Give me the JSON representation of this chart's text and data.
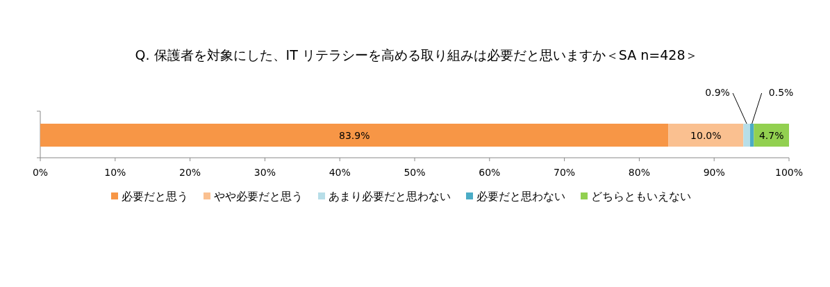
{
  "chart_data": {
    "type": "bar",
    "orientation": "horizontal",
    "stacked": true,
    "title": "Q. 保護者を対象にした、IT リテラシーを高める取り組みは必要だと思いますか＜SA n=428＞",
    "categories": [
      null
    ],
    "series": [
      {
        "name": "必要だと思う",
        "color": "#f79646",
        "values": [
          83.9
        ],
        "value_labels": [
          "83.9%"
        ]
      },
      {
        "name": "やや必要だと思う",
        "color": "#fac090",
        "values": [
          10.0
        ],
        "value_labels": [
          "10.0%"
        ]
      },
      {
        "name": "あまり必要だと思わない",
        "color": "#b7dee8",
        "values": [
          0.9
        ],
        "value_labels": [
          "0.9%"
        ]
      },
      {
        "name": "必要だと思わない",
        "color": "#4bacc6",
        "values": [
          0.5
        ],
        "value_labels": [
          "0.5%"
        ]
      },
      {
        "name": "どちらともいえない",
        "color": "#92d050",
        "values": [
          4.7
        ],
        "value_labels": [
          "4.7%"
        ]
      }
    ],
    "xlim": [
      0,
      100
    ],
    "xticks": [
      {
        "value": 0,
        "label": "0%"
      },
      {
        "value": 10,
        "label": "10%"
      },
      {
        "value": 20,
        "label": "20%"
      },
      {
        "value": 30,
        "label": "30%"
      },
      {
        "value": 40,
        "label": "40%"
      },
      {
        "value": 50,
        "label": "50%"
      },
      {
        "value": 60,
        "label": "60%"
      },
      {
        "value": 70,
        "label": "70%"
      },
      {
        "value": 80,
        "label": "80%"
      },
      {
        "value": 90,
        "label": "90%"
      },
      {
        "value": 100,
        "label": "100%"
      }
    ],
    "grid": false,
    "legend": "bottom"
  }
}
